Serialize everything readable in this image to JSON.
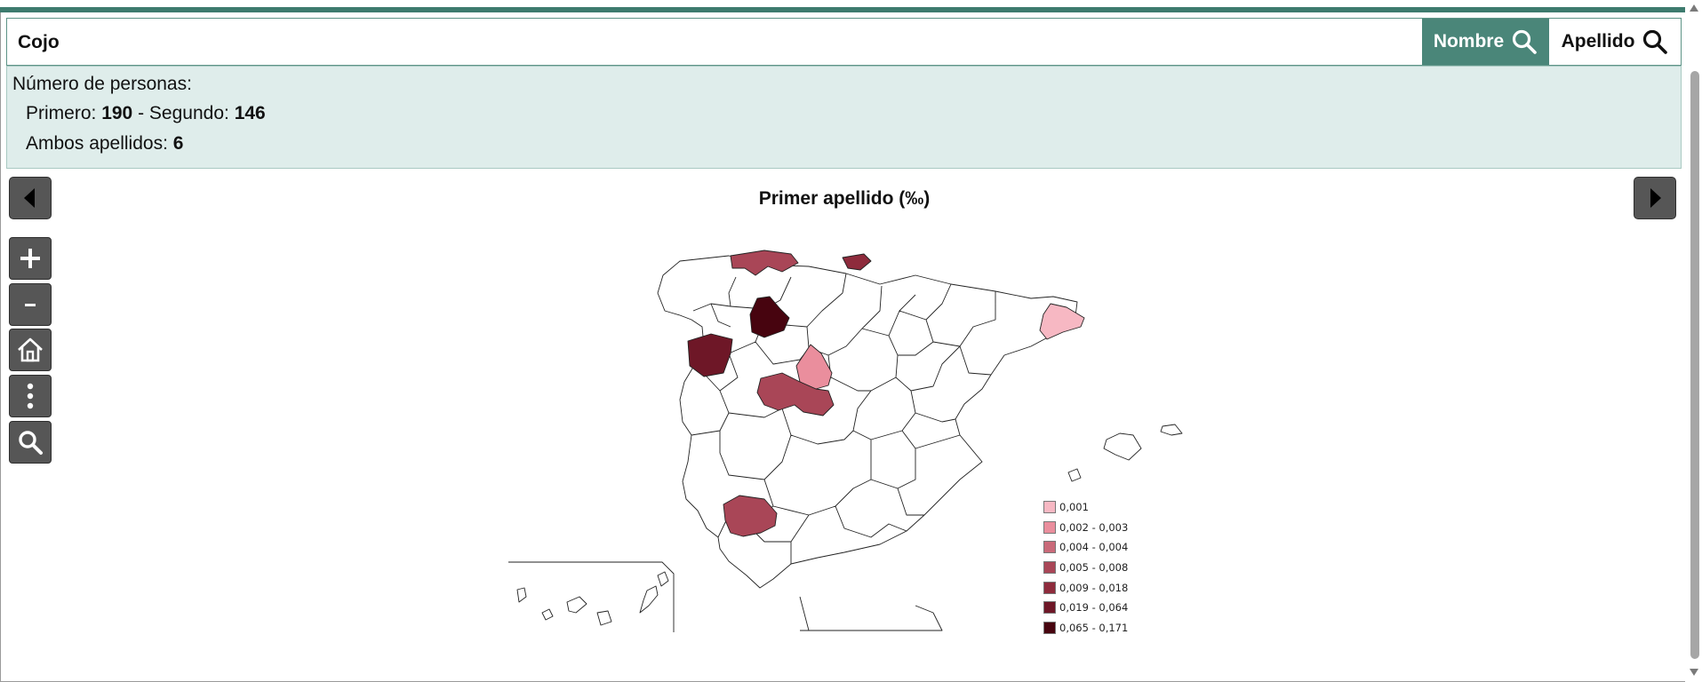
{
  "search": {
    "value": "Cojo"
  },
  "buttons": {
    "nombre": "Nombre",
    "apellido": "Apellido"
  },
  "stats": {
    "title": "Número de personas:",
    "primero_label": "Primero:",
    "primero_value": "190",
    "sep": "- Segundo:",
    "segundo_value": "146",
    "ambos_label": "Ambos apellidos:",
    "ambos_value": "6"
  },
  "map": {
    "title": "Primer apellido (‰)",
    "legend": [
      {
        "label": "0,001",
        "color": "#f7b8c3"
      },
      {
        "label": "0,002 - 0,003",
        "color": "#ea8e9d"
      },
      {
        "label": "0,004 - 0,004",
        "color": "#c96a79"
      },
      {
        "label": "0,005 - 0,008",
        "color": "#a94657"
      },
      {
        "label": "0,009 - 0,018",
        "color": "#8e2b3c"
      },
      {
        "label": "0,019 - 0,064",
        "color": "#6e1727"
      },
      {
        "label": "0,065 - 0,171",
        "color": "#47040f"
      }
    ]
  },
  "icons": {
    "prev": "triangle-left-icon",
    "next": "triangle-right-icon",
    "zoom_in": "plus-icon",
    "zoom_out": "minus-icon",
    "home": "home-icon",
    "menu": "vertical-dots-icon",
    "search": "search-icon"
  },
  "colors": {
    "accent": "#4a8679",
    "panel": "#dfedeb",
    "tool": "#565656"
  }
}
